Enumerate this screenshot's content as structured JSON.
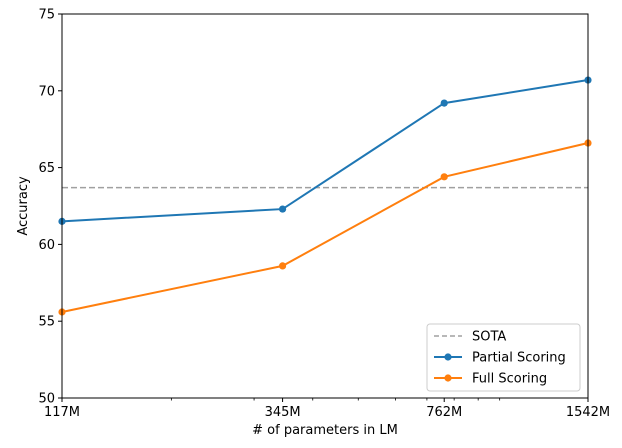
{
  "chart_data": {
    "type": "line",
    "title": "",
    "xlabel": "# of parameters in LM",
    "ylabel": "Accuracy",
    "x_scale": "log",
    "x": [
      117,
      345,
      762,
      1542
    ],
    "x_tick_labels": [
      "117M",
      "345M",
      "762M",
      "1542M"
    ],
    "ylim": [
      50,
      75
    ],
    "y_ticks": [
      50,
      55,
      60,
      65,
      70,
      75
    ],
    "reference_line": {
      "name": "SOTA",
      "value": 63.7,
      "color": "#a0a0a0",
      "style": "dashed"
    },
    "series": [
      {
        "name": "Partial Scoring",
        "color": "#1f77b4",
        "values": [
          61.5,
          62.3,
          69.2,
          70.7
        ]
      },
      {
        "name": "Full Scoring",
        "color": "#ff7f0e",
        "values": [
          55.6,
          58.6,
          64.4,
          66.6
        ]
      }
    ],
    "legend": {
      "position": "lower-right",
      "entries": [
        "SOTA",
        "Partial Scoring",
        "Full Scoring"
      ]
    }
  }
}
